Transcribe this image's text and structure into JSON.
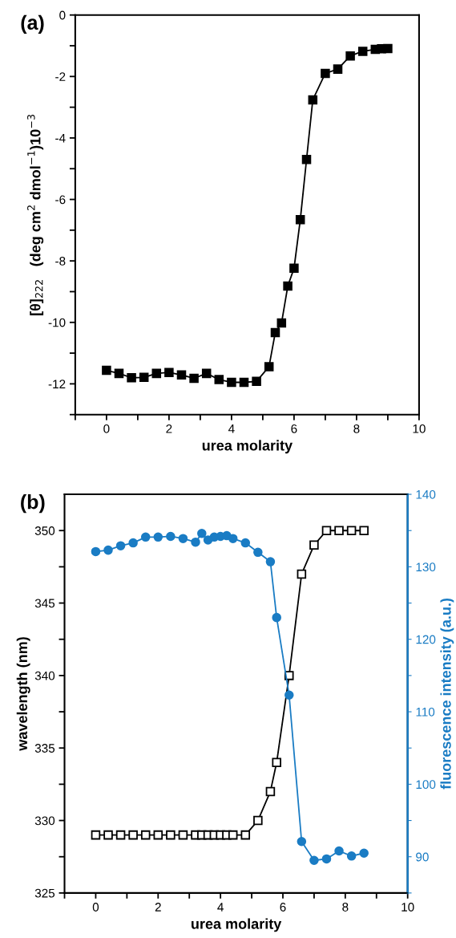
{
  "chart_data": [
    {
      "type": "line",
      "title": "(a)",
      "xlabel": "urea molarity",
      "ylabel": "[θ]$_{222}$   (deg cm$^{2}$ dmol$^{−1}$)10$^{−3}$",
      "xlim": [
        -1,
        10
      ],
      "xticks": [
        {
          "value": -1,
          "label": null
        },
        0,
        {
          "value": 1,
          "label": null
        },
        2,
        {
          "value": 3,
          "label": null
        },
        4,
        {
          "value": 5,
          "label": null
        },
        6,
        {
          "value": 7,
          "label": null
        },
        8,
        {
          "value": 9,
          "label": null
        },
        10
      ],
      "ylim": [
        -13,
        0
      ],
      "yticks": [
        {
          "value": -13,
          "label": null
        },
        -12,
        {
          "value": -11,
          "label": null
        },
        -10,
        {
          "value": -9,
          "label": null
        },
        -8,
        {
          "value": -7,
          "label": null
        },
        -6,
        {
          "value": -5,
          "label": null
        },
        -4,
        {
          "value": -3,
          "label": null
        },
        -2,
        {
          "value": -1,
          "label": null
        },
        0
      ],
      "marker": "square",
      "grid": false,
      "legend": false,
      "series": [
        {
          "color": "#000000",
          "x": [
            0,
            0.4,
            0.8,
            1.2,
            1.6,
            2.0,
            2.4,
            2.8,
            3.2,
            3.6,
            4.0,
            4.4,
            4.8,
            5.2,
            5.4,
            5.6,
            5.8,
            6.0,
            6.2,
            6.4,
            6.6,
            7.0,
            7.4,
            7.8,
            8.2,
            8.6,
            8.8,
            9.0
          ],
          "values": [
            -11.56,
            -11.66,
            -11.8,
            -11.79,
            -11.66,
            -11.63,
            -11.71,
            -11.82,
            -11.66,
            -11.86,
            -11.95,
            -11.95,
            -11.92,
            -11.44,
            -10.33,
            -10.02,
            -8.82,
            -8.24,
            -6.66,
            -4.7,
            -2.76,
            -1.9,
            -1.76,
            -1.33,
            -1.18,
            -1.12,
            -1.1,
            -1.09
          ]
        }
      ]
    },
    {
      "type": "line",
      "title": "(b)",
      "xlabel": "urea molarity",
      "ylabel": "wavelength (nm)",
      "y2label": "fluorescence intensity (a.u.)",
      "xlim": [
        -1,
        10
      ],
      "xticks": [
        {
          "value": -1,
          "label": null
        },
        0,
        {
          "value": 1,
          "label": null
        },
        2,
        {
          "value": 3,
          "label": null
        },
        4,
        {
          "value": 5,
          "label": null
        },
        6,
        {
          "value": 7,
          "label": null
        },
        8,
        {
          "value": 9,
          "label": null
        },
        10
      ],
      "ylim": [
        325,
        352.5
      ],
      "yticks": [
        325,
        {
          "value": 327.5,
          "label": null
        },
        330,
        {
          "value": 332.5,
          "label": null
        },
        335,
        {
          "value": 337.5,
          "label": null
        },
        340,
        {
          "value": 342.5,
          "label": null
        },
        345,
        {
          "value": 347.5,
          "label": null
        },
        350
      ],
      "y2lim": [
        85,
        140
      ],
      "y2ticks": [
        {
          "value": 85,
          "label": null
        },
        90,
        {
          "value": 95,
          "label": null
        },
        100,
        {
          "value": 105,
          "label": null
        },
        110,
        {
          "value": 115,
          "label": null
        },
        120,
        {
          "value": 125,
          "label": null
        },
        130,
        {
          "value": 135,
          "label": null
        },
        140
      ],
      "grid": false,
      "legend": false,
      "series": [
        {
          "color": "#000000",
          "marker": "square",
          "x": [
            0,
            0.4,
            0.8,
            1.2,
            1.6,
            2.0,
            2.4,
            2.8,
            3.2,
            3.4,
            3.6,
            3.8,
            4.0,
            4.2,
            4.4,
            4.8,
            5.2,
            5.6,
            5.8,
            6.2,
            6.6,
            7.0,
            7.4,
            7.8,
            8.2,
            8.6
          ],
          "values": [
            329,
            329,
            329,
            329,
            329,
            329,
            329,
            329,
            329,
            329,
            329,
            329,
            329,
            329,
            329,
            329,
            330,
            332,
            334,
            340,
            347,
            349,
            350,
            350,
            350,
            350
          ]
        },
        {
          "color": "#1a7cc4",
          "marker": "circle",
          "axis": "y2",
          "x": [
            0,
            0.4,
            0.8,
            1.2,
            1.6,
            2.0,
            2.4,
            2.8,
            3.2,
            3.4,
            3.6,
            3.8,
            4.0,
            4.2,
            4.4,
            4.8,
            5.2,
            5.6,
            5.8,
            6.2,
            6.6,
            7.0,
            7.4,
            7.8,
            8.2,
            8.6
          ],
          "values": [
            132.1,
            132.3,
            132.9,
            133.3,
            134.1,
            134.1,
            134.2,
            133.9,
            133.4,
            134.6,
            133.7,
            134.1,
            134.2,
            134.3,
            133.9,
            133.3,
            132.0,
            130.7,
            123.0,
            112.3,
            92.1,
            89.5,
            89.7,
            90.8,
            90.1,
            90.5
          ]
        }
      ]
    }
  ]
}
